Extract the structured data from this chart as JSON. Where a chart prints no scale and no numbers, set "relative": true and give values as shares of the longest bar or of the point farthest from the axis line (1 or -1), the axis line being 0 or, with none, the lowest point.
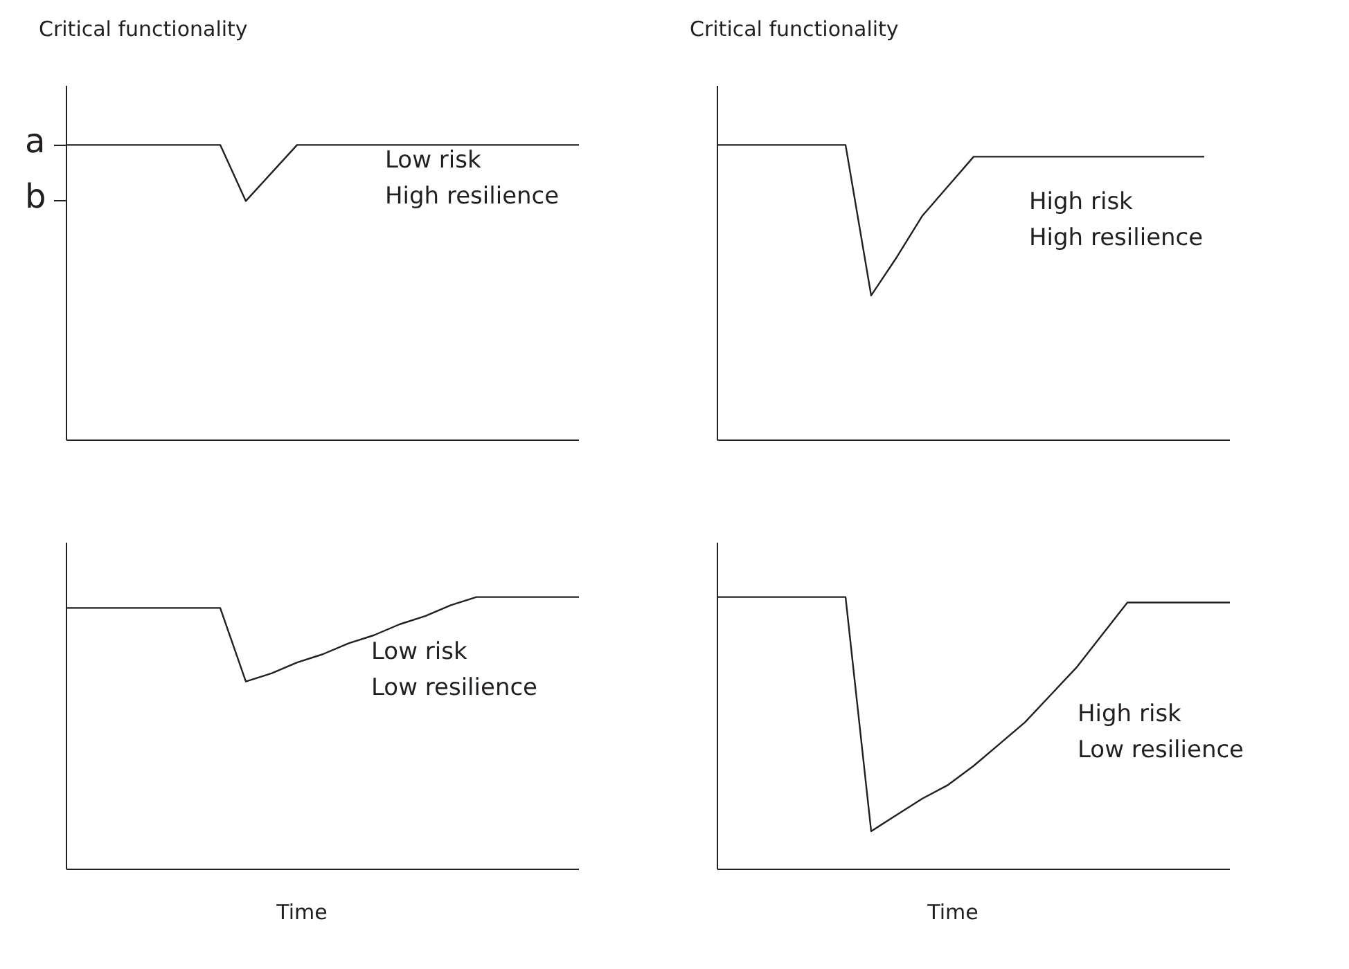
{
  "chart_data": [
    {
      "type": "line",
      "relative": true,
      "ylabel": "Critical functionality",
      "tick_labels": false,
      "marker": "none",
      "line_style": "solid",
      "color": "#231f20",
      "categories": [
        null,
        null,
        null,
        null,
        null,
        null,
        null,
        null,
        null,
        null,
        null,
        null,
        null,
        null,
        null,
        null,
        null,
        null,
        null,
        null,
        null
      ],
      "values": [
        1,
        1,
        1,
        1,
        1,
        1,
        1,
        0.81,
        0.905,
        1,
        1,
        1,
        1,
        1,
        1,
        1,
        1,
        1,
        1,
        1,
        1
      ],
      "annotations": [
        "a",
        "b",
        "Low risk",
        "High resilience"
      ]
    },
    {
      "type": "line",
      "relative": true,
      "ylabel": "Critical functionality",
      "tick_labels": false,
      "marker": "none",
      "line_style": "solid",
      "color": "#231f20",
      "categories": [
        null,
        null,
        null,
        null,
        null,
        null,
        null,
        null,
        null,
        null,
        null,
        null,
        null,
        null,
        null,
        null,
        null,
        null,
        null,
        null,
        null
      ],
      "values": [
        1,
        1,
        1,
        1,
        1,
        1,
        0.49,
        0.62,
        0.76,
        0.86,
        0.96,
        0.96,
        0.96,
        0.96,
        0.96,
        0.96,
        0.96,
        0.96,
        0.96,
        0.96,
        null
      ],
      "annotations": [
        "High risk",
        "High resilience"
      ]
    },
    {
      "type": "line",
      "relative": true,
      "xlabel": "Time",
      "tick_labels": false,
      "marker": "none",
      "line_style": "solid",
      "color": "#231f20",
      "categories": [
        null,
        null,
        null,
        null,
        null,
        null,
        null,
        null,
        null,
        null,
        null,
        null,
        null,
        null,
        null,
        null,
        null,
        null,
        null,
        null,
        null
      ],
      "values": [
        0.96,
        0.96,
        0.96,
        0.96,
        0.96,
        0.96,
        0.96,
        0.69,
        0.72,
        0.76,
        0.79,
        0.83,
        0.86,
        0.9,
        0.93,
        0.97,
        1,
        1,
        1,
        1,
        1
      ],
      "annotations": [
        "Low risk",
        "Low resilience"
      ]
    },
    {
      "type": "line",
      "relative": true,
      "xlabel": "Time",
      "tick_labels": false,
      "marker": "none",
      "line_style": "solid",
      "color": "#231f20",
      "categories": [
        null,
        null,
        null,
        null,
        null,
        null,
        null,
        null,
        null,
        null,
        null,
        null,
        null,
        null,
        null,
        null,
        null,
        null,
        null,
        null,
        null
      ],
      "values": [
        1,
        1,
        1,
        1,
        1,
        1,
        0.14,
        0.2,
        0.26,
        0.31,
        0.38,
        0.46,
        0.54,
        0.64,
        0.74,
        0.86,
        0.98,
        0.98,
        0.98,
        0.98,
        0.98
      ],
      "annotations": [
        "High risk",
        "Low resilience"
      ]
    }
  ]
}
